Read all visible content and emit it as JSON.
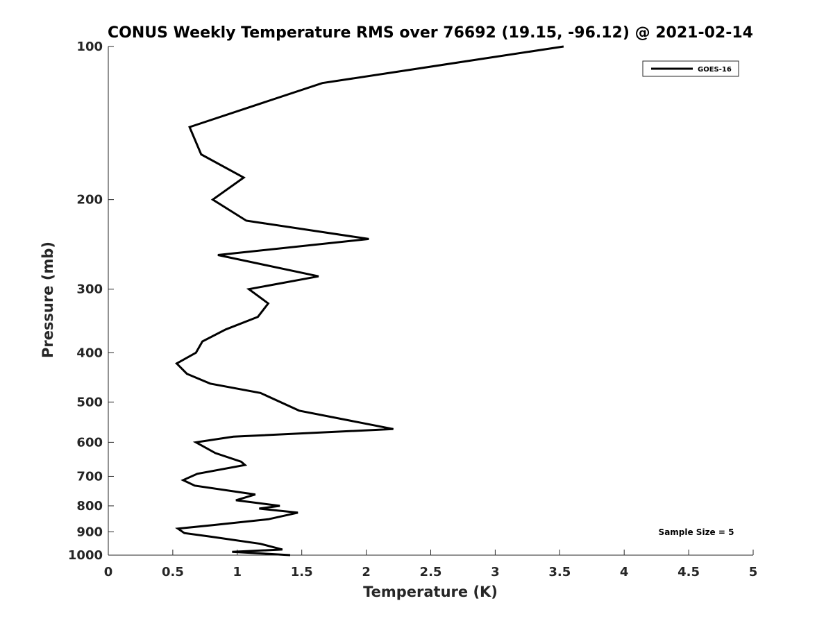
{
  "chart_data": {
    "type": "line",
    "title": "CONUS Weekly Temperature RMS over 76692 (19.15, -96.12) @ 2021-02-14",
    "xlabel": "Temperature (K)",
    "ylabel": "Pressure (mb)",
    "xlim": [
      0,
      5
    ],
    "ylim": [
      100,
      1000
    ],
    "y_scale": "log",
    "y_reversed": true,
    "grid": false,
    "x_ticks": [
      0,
      0.5,
      1,
      1.5,
      2,
      2.5,
      3,
      3.5,
      4,
      4.5,
      5
    ],
    "y_ticks": [
      100,
      200,
      300,
      400,
      500,
      600,
      700,
      800,
      900,
      1000
    ],
    "legend_position": "top-right",
    "series": [
      {
        "name": "GOES-16",
        "color": "#000000",
        "x": [
          3.53,
          1.66,
          0.63,
          0.72,
          1.05,
          0.81,
          1.07,
          2.02,
          0.85,
          1.63,
          1.09,
          1.24,
          1.16,
          0.91,
          0.73,
          0.68,
          0.53,
          0.61,
          0.79,
          1.18,
          1.48,
          2.21,
          0.97,
          0.68,
          0.83,
          1.03,
          1.06,
          0.69,
          0.58,
          0.67,
          1.14,
          0.99,
          1.33,
          1.17,
          1.47,
          1.24,
          0.81,
          0.54,
          0.59,
          0.8,
          1.18,
          1.35,
          0.96,
          1.41
        ],
        "y": [
          100,
          118,
          144,
          163,
          181,
          200,
          220,
          239,
          257,
          283,
          300,
          320,
          340,
          360,
          380,
          400,
          420,
          440,
          460,
          480,
          520,
          565,
          585,
          600,
          630,
          655,
          665,
          692,
          712,
          730,
          760,
          780,
          800,
          810,
          825,
          850,
          873,
          887,
          905,
          920,
          950,
          975,
          985,
          1000
        ]
      }
    ],
    "annotations": [
      "Sample Size = 5"
    ]
  }
}
